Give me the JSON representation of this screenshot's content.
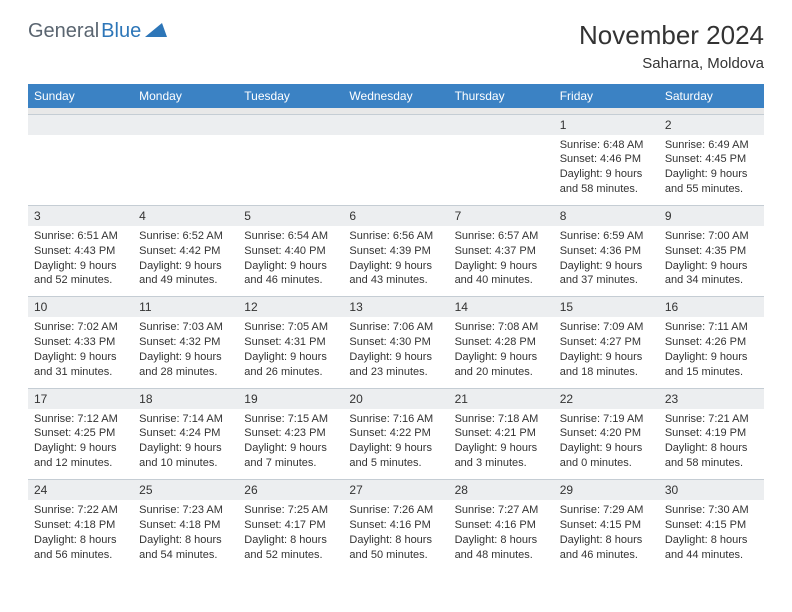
{
  "logo": {
    "text1": "General",
    "text2": "Blue"
  },
  "title": "November 2024",
  "location": "Saharna, Moldova",
  "colors": {
    "header_bg": "#3b82c4",
    "header_text": "#ffffff",
    "date_bg": "#eceef0",
    "text": "#333333",
    "logo_gray": "#5a6570",
    "logo_blue": "#2d76b8",
    "border": "#c5cdd4"
  },
  "days": [
    "Sunday",
    "Monday",
    "Tuesday",
    "Wednesday",
    "Thursday",
    "Friday",
    "Saturday"
  ],
  "weeks": [
    [
      null,
      null,
      null,
      null,
      null,
      {
        "n": "1",
        "sr": "6:48 AM",
        "ss": "4:46 PM",
        "dl": "9 hours and 58 minutes."
      },
      {
        "n": "2",
        "sr": "6:49 AM",
        "ss": "4:45 PM",
        "dl": "9 hours and 55 minutes."
      }
    ],
    [
      {
        "n": "3",
        "sr": "6:51 AM",
        "ss": "4:43 PM",
        "dl": "9 hours and 52 minutes."
      },
      {
        "n": "4",
        "sr": "6:52 AM",
        "ss": "4:42 PM",
        "dl": "9 hours and 49 minutes."
      },
      {
        "n": "5",
        "sr": "6:54 AM",
        "ss": "4:40 PM",
        "dl": "9 hours and 46 minutes."
      },
      {
        "n": "6",
        "sr": "6:56 AM",
        "ss": "4:39 PM",
        "dl": "9 hours and 43 minutes."
      },
      {
        "n": "7",
        "sr": "6:57 AM",
        "ss": "4:37 PM",
        "dl": "9 hours and 40 minutes."
      },
      {
        "n": "8",
        "sr": "6:59 AM",
        "ss": "4:36 PM",
        "dl": "9 hours and 37 minutes."
      },
      {
        "n": "9",
        "sr": "7:00 AM",
        "ss": "4:35 PM",
        "dl": "9 hours and 34 minutes."
      }
    ],
    [
      {
        "n": "10",
        "sr": "7:02 AM",
        "ss": "4:33 PM",
        "dl": "9 hours and 31 minutes."
      },
      {
        "n": "11",
        "sr": "7:03 AM",
        "ss": "4:32 PM",
        "dl": "9 hours and 28 minutes."
      },
      {
        "n": "12",
        "sr": "7:05 AM",
        "ss": "4:31 PM",
        "dl": "9 hours and 26 minutes."
      },
      {
        "n": "13",
        "sr": "7:06 AM",
        "ss": "4:30 PM",
        "dl": "9 hours and 23 minutes."
      },
      {
        "n": "14",
        "sr": "7:08 AM",
        "ss": "4:28 PM",
        "dl": "9 hours and 20 minutes."
      },
      {
        "n": "15",
        "sr": "7:09 AM",
        "ss": "4:27 PM",
        "dl": "9 hours and 18 minutes."
      },
      {
        "n": "16",
        "sr": "7:11 AM",
        "ss": "4:26 PM",
        "dl": "9 hours and 15 minutes."
      }
    ],
    [
      {
        "n": "17",
        "sr": "7:12 AM",
        "ss": "4:25 PM",
        "dl": "9 hours and 12 minutes."
      },
      {
        "n": "18",
        "sr": "7:14 AM",
        "ss": "4:24 PM",
        "dl": "9 hours and 10 minutes."
      },
      {
        "n": "19",
        "sr": "7:15 AM",
        "ss": "4:23 PM",
        "dl": "9 hours and 7 minutes."
      },
      {
        "n": "20",
        "sr": "7:16 AM",
        "ss": "4:22 PM",
        "dl": "9 hours and 5 minutes."
      },
      {
        "n": "21",
        "sr": "7:18 AM",
        "ss": "4:21 PM",
        "dl": "9 hours and 3 minutes."
      },
      {
        "n": "22",
        "sr": "7:19 AM",
        "ss": "4:20 PM",
        "dl": "9 hours and 0 minutes."
      },
      {
        "n": "23",
        "sr": "7:21 AM",
        "ss": "4:19 PM",
        "dl": "8 hours and 58 minutes."
      }
    ],
    [
      {
        "n": "24",
        "sr": "7:22 AM",
        "ss": "4:18 PM",
        "dl": "8 hours and 56 minutes."
      },
      {
        "n": "25",
        "sr": "7:23 AM",
        "ss": "4:18 PM",
        "dl": "8 hours and 54 minutes."
      },
      {
        "n": "26",
        "sr": "7:25 AM",
        "ss": "4:17 PM",
        "dl": "8 hours and 52 minutes."
      },
      {
        "n": "27",
        "sr": "7:26 AM",
        "ss": "4:16 PM",
        "dl": "8 hours and 50 minutes."
      },
      {
        "n": "28",
        "sr": "7:27 AM",
        "ss": "4:16 PM",
        "dl": "8 hours and 48 minutes."
      },
      {
        "n": "29",
        "sr": "7:29 AM",
        "ss": "4:15 PM",
        "dl": "8 hours and 46 minutes."
      },
      {
        "n": "30",
        "sr": "7:30 AM",
        "ss": "4:15 PM",
        "dl": "8 hours and 44 minutes."
      }
    ]
  ],
  "labels": {
    "sunrise": "Sunrise:",
    "sunset": "Sunset:",
    "daylight": "Daylight:"
  }
}
